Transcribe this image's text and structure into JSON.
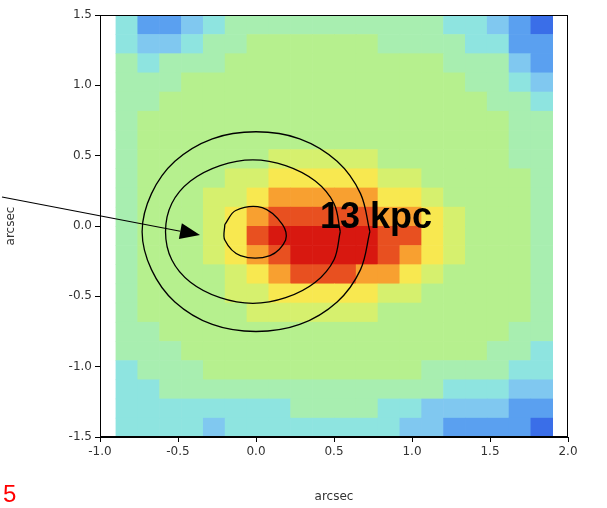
{
  "chart_data": {
    "type": "heatmap",
    "x_label": "arcsec",
    "y_label": "arcsec",
    "xlim": [
      -1.0,
      2.0
    ],
    "xticks": [
      {
        "value": -1.0,
        "label": "-1.0"
      },
      -0.5,
      {
        "value": 0,
        "label": "0.0"
      },
      0.5,
      {
        "value": 1.0,
        "label": "1.0"
      },
      1.5,
      {
        "value": 2.0,
        "label": "2.0"
      }
    ],
    "ylim": [
      -1.5,
      1.5
    ],
    "yticks": [
      -1.5,
      {
        "value": -1.0,
        "label": "-1.0"
      },
      -0.5,
      {
        "value": 0,
        "label": "0.0"
      },
      0.5,
      {
        "value": 1.0,
        "label": "1.0"
      },
      1.5
    ],
    "grid": false,
    "cell_x_range": [
      -0.9,
      1.9
    ],
    "cell_y_range": [
      -1.5,
      1.5
    ],
    "color_range": [
      0,
      10
    ],
    "cells": [
      [
        3,
        1,
        1,
        2,
        3,
        4,
        4,
        4,
        4,
        4,
        4,
        4,
        4,
        4,
        4,
        3,
        3,
        2,
        1,
        0
      ],
      [
        3,
        2,
        2,
        3,
        4,
        4,
        5,
        5,
        5,
        5,
        5,
        5,
        4,
        4,
        4,
        4,
        3,
        3,
        1,
        1
      ],
      [
        4,
        3,
        4,
        4,
        4,
        5,
        5,
        5,
        5,
        5,
        5,
        5,
        5,
        5,
        5,
        4,
        4,
        4,
        2,
        1
      ],
      [
        4,
        4,
        4,
        5,
        5,
        5,
        5,
        5,
        5,
        5,
        5,
        5,
        5,
        5,
        5,
        5,
        4,
        4,
        3,
        2
      ],
      [
        4,
        4,
        5,
        5,
        5,
        5,
        5,
        5,
        5,
        5,
        5,
        5,
        5,
        5,
        5,
        5,
        5,
        4,
        4,
        3
      ],
      [
        4,
        5,
        5,
        5,
        5,
        5,
        5,
        5,
        5,
        5,
        5,
        5,
        5,
        5,
        5,
        5,
        5,
        5,
        4,
        4
      ],
      [
        4,
        5,
        5,
        5,
        5,
        5,
        5,
        5,
        5,
        5,
        5,
        5,
        5,
        5,
        5,
        5,
        5,
        5,
        4,
        4
      ],
      [
        4,
        5,
        5,
        5,
        5,
        5,
        5,
        6,
        6,
        6,
        6,
        6,
        5,
        5,
        5,
        5,
        5,
        5,
        4,
        4
      ],
      [
        4,
        5,
        5,
        5,
        5,
        6,
        6,
        7,
        7,
        7,
        7,
        7,
        6,
        6,
        5,
        5,
        5,
        5,
        5,
        4
      ],
      [
        4,
        5,
        5,
        5,
        6,
        6,
        7,
        8,
        8,
        8,
        8,
        8,
        7,
        7,
        6,
        5,
        5,
        5,
        5,
        4
      ],
      [
        4,
        5,
        5,
        5,
        6,
        7,
        8,
        9,
        9,
        9,
        9,
        9,
        8,
        8,
        7,
        6,
        5,
        5,
        5,
        4
      ],
      [
        4,
        5,
        5,
        5,
        6,
        7,
        9,
        10,
        10,
        10,
        10,
        10,
        9,
        9,
        7,
        6,
        5,
        5,
        5,
        4
      ],
      [
        4,
        5,
        5,
        5,
        6,
        7,
        8,
        9,
        10,
        10,
        10,
        10,
        9,
        8,
        7,
        6,
        5,
        5,
        5,
        4
      ],
      [
        4,
        5,
        5,
        5,
        5,
        6,
        7,
        8,
        9,
        9,
        9,
        8,
        8,
        7,
        6,
        5,
        5,
        5,
        5,
        4
      ],
      [
        4,
        5,
        5,
        5,
        5,
        6,
        6,
        7,
        7,
        7,
        7,
        7,
        6,
        6,
        5,
        5,
        5,
        5,
        5,
        4
      ],
      [
        4,
        5,
        5,
        5,
        5,
        5,
        6,
        6,
        6,
        6,
        6,
        6,
        5,
        5,
        5,
        5,
        5,
        5,
        5,
        4
      ],
      [
        4,
        4,
        5,
        5,
        5,
        5,
        5,
        5,
        5,
        5,
        5,
        5,
        5,
        5,
        5,
        5,
        5,
        5,
        4,
        4
      ],
      [
        4,
        4,
        4,
        5,
        5,
        5,
        5,
        5,
        5,
        5,
        5,
        5,
        5,
        5,
        5,
        5,
        5,
        4,
        4,
        3
      ],
      [
        3,
        4,
        4,
        4,
        5,
        5,
        5,
        5,
        5,
        5,
        5,
        5,
        5,
        5,
        4,
        4,
        4,
        4,
        3,
        3
      ],
      [
        3,
        3,
        4,
        4,
        4,
        4,
        4,
        4,
        4,
        4,
        4,
        4,
        4,
        4,
        4,
        3,
        3,
        3,
        2,
        2
      ],
      [
        3,
        3,
        3,
        3,
        3,
        3,
        3,
        3,
        4,
        4,
        4,
        4,
        3,
        3,
        2,
        2,
        2,
        2,
        1,
        1
      ],
      [
        3,
        3,
        3,
        3,
        2,
        3,
        3,
        3,
        3,
        3,
        3,
        3,
        3,
        2,
        2,
        1,
        1,
        1,
        1,
        0
      ]
    ],
    "contours": [
      {
        "color": "#000000",
        "x": [
          0.73,
          0.67,
          0.52,
          0.28,
          0,
          -0.28,
          -0.52,
          -0.67,
          -0.73,
          -0.67,
          -0.52,
          -0.28,
          0,
          0.28,
          0.52,
          0.67,
          0.73
        ],
        "y": [
          -0.04,
          0.23,
          0.46,
          0.62,
          0.67,
          0.62,
          0.46,
          0.23,
          -0.04,
          -0.31,
          -0.54,
          -0.7,
          -0.75,
          -0.7,
          -0.54,
          -0.31,
          -0.04
        ]
      },
      {
        "color": "#000000",
        "x": [
          0.54,
          0.5,
          0.38,
          0.19,
          -0.02,
          -0.23,
          -0.42,
          -0.54,
          -0.58,
          -0.54,
          -0.42,
          -0.23,
          -0.02,
          0.19,
          0.38,
          0.5,
          0.54
        ],
        "y": [
          -0.04,
          0.16,
          0.32,
          0.43,
          0.47,
          0.43,
          0.32,
          0.16,
          -0.04,
          -0.24,
          -0.4,
          -0.51,
          -0.55,
          -0.51,
          -0.4,
          -0.24,
          -0.04
        ]
      },
      {
        "color": "#000000",
        "x": [
          -0.2,
          -0.13,
          0.04,
          0.17,
          0.19,
          0.09,
          -0.1,
          -0.2,
          -0.2
        ],
        "y": [
          0.01,
          0.11,
          0.13,
          0.01,
          -0.1,
          -0.21,
          -0.21,
          -0.1,
          0.01
        ]
      }
    ],
    "annotations": [
      {
        "text": "13 kpc",
        "color": "#000000"
      },
      {
        "text": "5",
        "color": "#ff0000"
      }
    ]
  }
}
